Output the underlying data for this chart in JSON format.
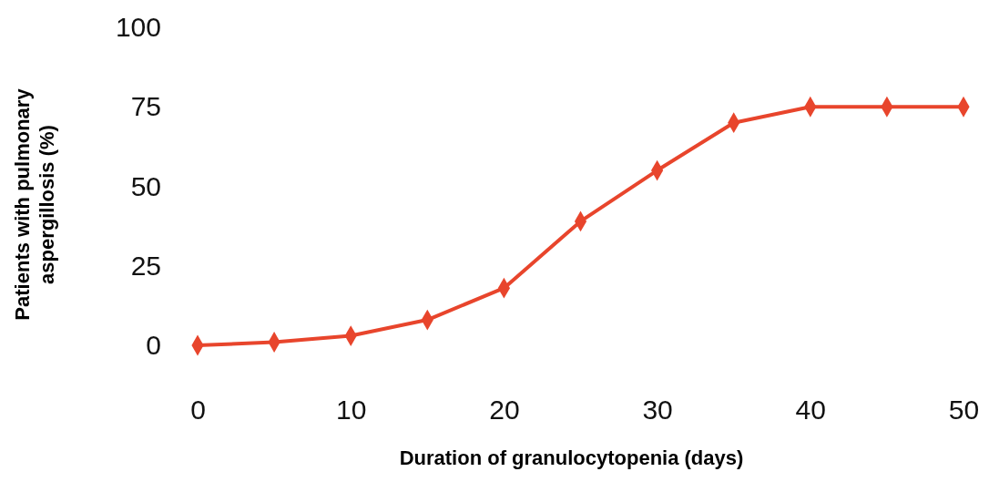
{
  "chart_data": {
    "type": "line",
    "xlabel": "Duration of granulocytopenia (days)",
    "ylabel": "Patients with pulmonary aspergillosis (%)",
    "x": [
      0,
      5,
      10,
      15,
      20,
      25,
      30,
      35,
      40,
      45,
      50
    ],
    "series": [
      {
        "color": "#e8452c",
        "values": [
          0,
          1,
          3,
          8,
          18,
          39,
          55,
          70,
          75,
          75,
          75
        ]
      }
    ],
    "xlim": [
      0,
      50
    ],
    "xticks": [
      0,
      10,
      20,
      30,
      40,
      50
    ],
    "ylim": [
      0,
      100
    ],
    "yticks": [
      0,
      25,
      50,
      75,
      100
    ],
    "marker": "diamond",
    "line_style": "solid",
    "grid": false
  }
}
